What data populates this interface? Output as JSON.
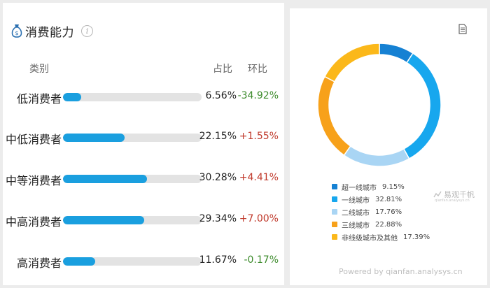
{
  "title": "消费能力",
  "headers": {
    "category": "类别",
    "share": "占比",
    "change": "环比"
  },
  "rows": [
    {
      "label": "低消费者",
      "share_pct": "6.56%",
      "share_value": 6.56,
      "change": "-34.92%",
      "direction": "down"
    },
    {
      "label": "中低消费者",
      "share_pct": "22.15%",
      "share_value": 22.15,
      "change": "+1.55%",
      "direction": "up"
    },
    {
      "label": "中等消费者",
      "share_pct": "30.28%",
      "share_value": 30.28,
      "change": "+4.41%",
      "direction": "up"
    },
    {
      "label": "中高消费者",
      "share_pct": "29.34%",
      "share_value": 29.34,
      "change": "+7.00%",
      "direction": "up"
    },
    {
      "label": "高消费者",
      "share_pct": "11.67%",
      "share_value": 11.67,
      "change": "-0.17%",
      "direction": "down"
    }
  ],
  "colors": {
    "bar": "#1a9fdf",
    "up": "#c0392b",
    "down": "#3d8b2c"
  },
  "donut": {
    "items": [
      {
        "label": "超一线城市",
        "pct_text": "9.15%",
        "value": 9.15,
        "color": "#1681d3"
      },
      {
        "label": "一线城市",
        "pct_text": "32.81%",
        "value": 32.81,
        "color": "#17a7ee"
      },
      {
        "label": "二线城市",
        "pct_text": "17.76%",
        "value": 17.76,
        "color": "#a9d5f4"
      },
      {
        "label": "三线城市",
        "pct_text": "22.88%",
        "value": 22.88,
        "color": "#f7a11a"
      },
      {
        "label": "非线级城市及其他",
        "pct_text": "17.39%",
        "value": 17.39,
        "color": "#fbb81a"
      }
    ]
  },
  "watermark": {
    "brand": "易观千帆",
    "sub": "qianfan.analysys.cn"
  },
  "footer": "Powered by qianfan.analysys.cn"
}
